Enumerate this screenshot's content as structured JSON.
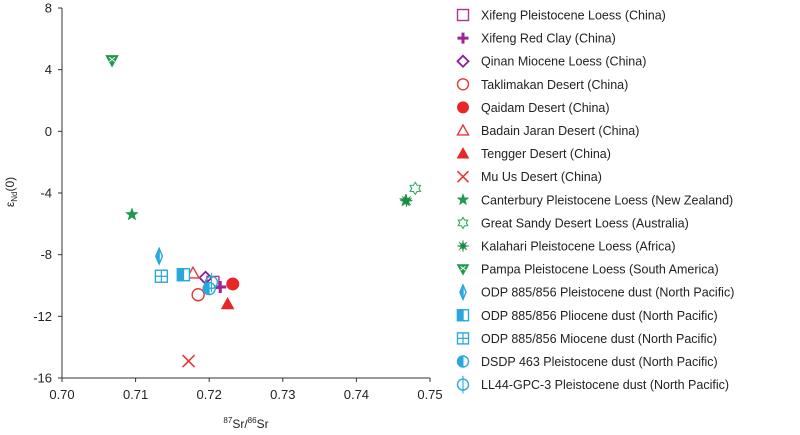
{
  "chart_data": {
    "type": "scatter",
    "title": "",
    "xlabel_sup": "87",
    "xlabel_a": "Sr/",
    "xlabel_sup2": "86",
    "xlabel_b": "Sr",
    "ylabel_main": "ε",
    "ylabel_sub": "Nd",
    "ylabel_rest": "(0)",
    "xlim": [
      0.7,
      0.75
    ],
    "ylim": [
      -16,
      8
    ],
    "xticks": [
      "0.70",
      "0.71",
      "0.72",
      "0.73",
      "0.74",
      "0.75"
    ],
    "yticks": [
      "8",
      "4",
      "0",
      "-4",
      "-8",
      "-12",
      "-16"
    ],
    "legend_position": "right",
    "series": [
      {
        "name": "Xifeng Pleistocene Loess (China)",
        "marker": "square-open",
        "color": "#b0309a",
        "points": [
          [
            0.7205,
            -9.8
          ]
        ]
      },
      {
        "name": "Xifeng Red Clay (China)",
        "marker": "plus",
        "color": "#9b2596",
        "points": [
          [
            0.7215,
            -10.1
          ]
        ]
      },
      {
        "name": "Qinan Miocene Loess (China)",
        "marker": "diamond-open",
        "color": "#8a1f9c",
        "points": [
          [
            0.7195,
            -9.5
          ]
        ]
      },
      {
        "name": "Taklimakan Desert (China)",
        "marker": "circle-open",
        "color": "#e8373a",
        "points": [
          [
            0.7185,
            -10.6
          ]
        ]
      },
      {
        "name": "Qaidam Desert (China)",
        "marker": "circle-filled",
        "color": "#e8262a",
        "points": [
          [
            0.7232,
            -9.9
          ]
        ]
      },
      {
        "name": "Badain Jaran Desert (China)",
        "marker": "triangle-open",
        "color": "#e8373a",
        "points": [
          [
            0.7178,
            -9.2
          ]
        ]
      },
      {
        "name": "Tengger Desert (China)",
        "marker": "triangle-filled",
        "color": "#e8262a",
        "points": [
          [
            0.7225,
            -11.2
          ]
        ]
      },
      {
        "name": "Mu Us Desert (China)",
        "marker": "cross",
        "color": "#e8373a",
        "points": [
          [
            0.7172,
            -14.9
          ]
        ]
      },
      {
        "name": "Canterbury Pleistocene Loess (New Zealand)",
        "marker": "star-filled",
        "color": "#1e9a4c",
        "points": [
          [
            0.7095,
            -5.4
          ],
          [
            0.7467,
            -4.5
          ]
        ]
      },
      {
        "name": "Great Sandy Desert Loess (Australia)",
        "marker": "hexagram-open",
        "color": "#30a860",
        "points": [
          [
            0.748,
            -3.7
          ]
        ]
      },
      {
        "name": "Kalahari Pleistocene Loess (Africa)",
        "marker": "asterisk",
        "color": "#1e8a45",
        "points": [
          [
            0.7468,
            -4.5
          ]
        ]
      },
      {
        "name": "Pampa Pleistocene Loess (South America)",
        "marker": "triangle-down-cross",
        "color": "#1e9a4c",
        "points": [
          [
            0.7068,
            4.6
          ]
        ]
      },
      {
        "name": "ODP 885/856 Pleistocene dust (North Pacific)",
        "marker": "thin-diamond-half",
        "color": "#2aa8dc",
        "points": [
          [
            0.7132,
            -8.1
          ]
        ]
      },
      {
        "name": "ODP 885/856 Pliocene dust (North Pacific)",
        "marker": "square-half",
        "color": "#2aa8dc",
        "points": [
          [
            0.7165,
            -9.3
          ]
        ]
      },
      {
        "name": "ODP 885/856 Miocene dust (North Pacific)",
        "marker": "square-grid",
        "color": "#2aa8dc",
        "points": [
          [
            0.7135,
            -9.4
          ]
        ]
      },
      {
        "name": "DSDP 463 Pleistocene dust (North Pacific)",
        "marker": "circle-half",
        "color": "#2aa8dc",
        "points": [
          [
            0.72,
            -10.2
          ]
        ]
      },
      {
        "name": "LL44-GPC-3 Pleistocene dust (North Pacific)",
        "marker": "circle-cross-open",
        "color": "#2aa8dc",
        "points": [
          [
            0.7203,
            -9.8
          ]
        ]
      }
    ]
  }
}
